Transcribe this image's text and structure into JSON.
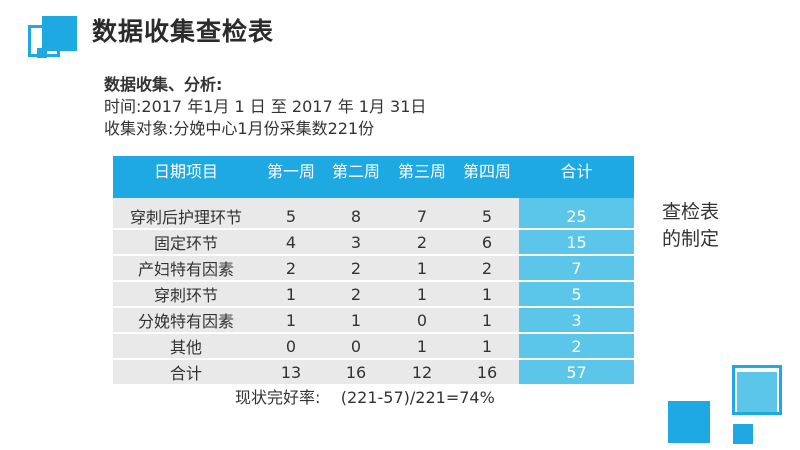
{
  "header": {
    "title": "数据收集查检表"
  },
  "info": {
    "heading": "数据收集、分析:",
    "time_line": "时间:2017 年1月 1  日 至    2017    年  1月  31日",
    "subject_line": "收集对象:分娩中心1月份采集数221份"
  },
  "table": {
    "columns": [
      "日期项目",
      "第一周",
      "第二周",
      "第三周",
      "第四周",
      "合计"
    ],
    "rows": [
      {
        "label": "穿刺后护理环节",
        "values": [
          "5",
          "8",
          "7",
          "5",
          "25"
        ]
      },
      {
        "label": "固定环节",
        "values": [
          "4",
          "3",
          "2",
          "6",
          "15"
        ]
      },
      {
        "label": "产妇特有因素",
        "values": [
          "2",
          "2",
          "1",
          "2",
          "7"
        ]
      },
      {
        "label": "穿刺环节",
        "values": [
          "1",
          "2",
          "1",
          "1",
          "5"
        ]
      },
      {
        "label": "分娩特有因素",
        "values": [
          "1",
          "1",
          "0",
          "1",
          "3"
        ]
      },
      {
        "label": "其他",
        "values": [
          "0",
          "0",
          "1",
          "1",
          "2"
        ]
      },
      {
        "label": "合计",
        "values": [
          "13",
          "16",
          "12",
          "16",
          "57"
        ]
      }
    ]
  },
  "side_note": {
    "line1": "查检表",
    "line2": "的制定"
  },
  "footer": {
    "rate_text": "现状完好率:    (221-57)/221=74%"
  },
  "colors": {
    "accent": "#1fa9e2",
    "total_column": "#5bc5ea",
    "row_fill": "#e9e9ea"
  }
}
